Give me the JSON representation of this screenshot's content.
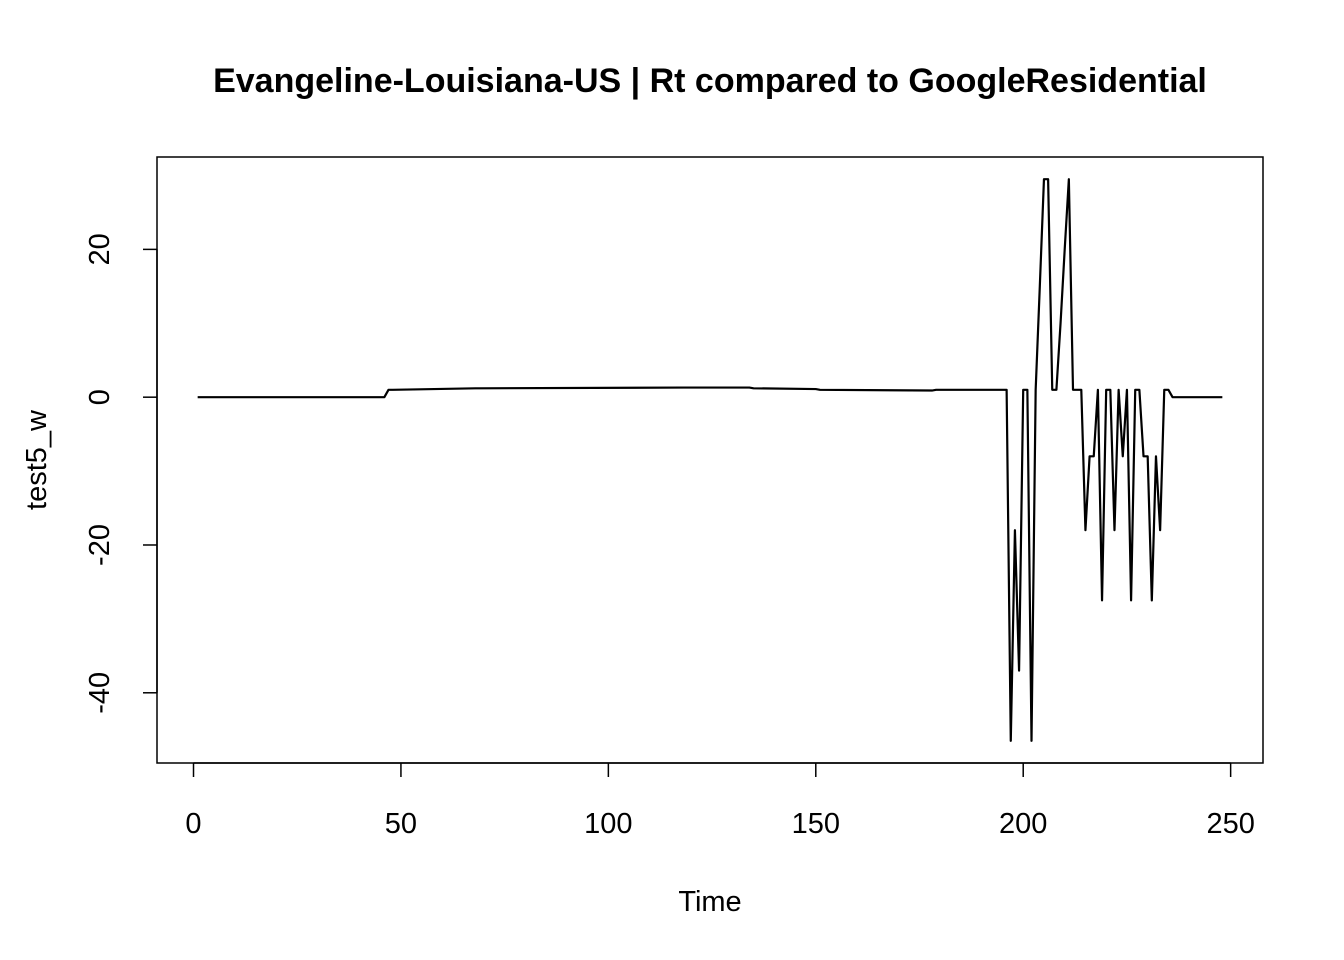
{
  "chart_data": {
    "type": "line",
    "title": "Evangeline-Louisiana-US | Rt compared to GoogleResidential",
    "xlabel": "Time",
    "ylabel": "test5_w",
    "xlim": [
      -8.8,
      257.8
    ],
    "ylim": [
      -49.5,
      32.5
    ],
    "xticks": [
      0,
      50,
      100,
      150,
      200,
      250
    ],
    "yticks": [
      -40,
      -20,
      0,
      20
    ],
    "grid": false,
    "legend": "none",
    "line_color": "#000000",
    "series": [
      {
        "x": [
          1,
          46,
          47,
          48,
          68,
          69,
          118,
          119,
          134,
          135,
          150,
          151,
          178,
          179,
          196,
          197,
          198,
          199,
          200,
          201,
          202,
          203,
          204,
          205,
          206,
          207,
          208,
          209,
          210,
          211,
          212,
          213,
          214,
          215,
          216,
          217,
          218,
          219,
          220,
          221,
          222,
          223,
          224,
          225,
          226,
          227,
          228,
          229,
          230,
          231,
          232,
          233,
          234,
          235,
          236,
          237,
          248
        ],
        "y": [
          0,
          0,
          1,
          1,
          1.2,
          1.2,
          1.3,
          1.3,
          1.3,
          1.2,
          1.1,
          1,
          0.9,
          1,
          1,
          -46.5,
          -18,
          -37,
          1,
          1,
          -46.5,
          1,
          15,
          29.5,
          29.5,
          1,
          1,
          10,
          20,
          29.5,
          1,
          1,
          1,
          -18,
          -8,
          -8,
          1,
          -27.5,
          1,
          1,
          -18,
          1,
          -8,
          1,
          -27.5,
          1,
          1,
          -8,
          -8,
          -27.5,
          -8,
          -18,
          1,
          1,
          0,
          0,
          0
        ]
      }
    ]
  }
}
